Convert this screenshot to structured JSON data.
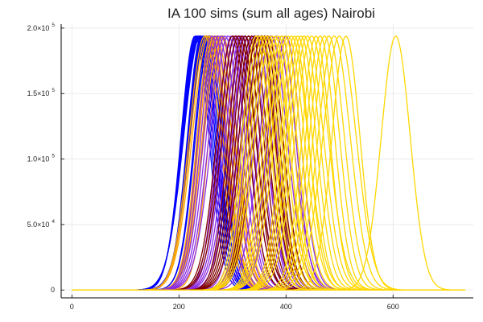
{
  "chart_data": {
    "type": "line",
    "title": "IA 100 sims (sum all ages) Nairobi",
    "xlabel": "",
    "ylabel": "",
    "xlim": [
      -20,
      750
    ],
    "ylim": [
      -6000,
      203000
    ],
    "grid": true,
    "legend": "none",
    "x_ticks": [
      {
        "value": 0,
        "label": "0"
      },
      {
        "value": 200,
        "label": "200"
      },
      {
        "value": 400,
        "label": "400"
      },
      {
        "value": 600,
        "label": "600"
      }
    ],
    "y_ticks": [
      {
        "value": 0,
        "mantissa": "0",
        "exponent": ""
      },
      {
        "value": 50000,
        "mantissa": "5.0×10",
        "exponent": "4"
      },
      {
        "value": 100000,
        "mantissa": "1.0×10",
        "exponent": "5"
      },
      {
        "value": 150000,
        "mantissa": "1.5×10",
        "exponent": "5"
      },
      {
        "value": 200000,
        "mantissa": "2.0×10",
        "exponent": "5"
      }
    ],
    "peak_value": 194000,
    "x_max": 735,
    "series": [
      {
        "color": "#0000ff",
        "peaks": [
          230,
          232,
          234,
          236,
          238,
          240,
          242,
          244,
          246,
          248,
          250,
          252,
          255,
          258
        ]
      },
      {
        "color": "#ffa500",
        "peaks": [
          248,
          252,
          256,
          260,
          263,
          266,
          270,
          274,
          278,
          282
        ]
      },
      {
        "color": "#8b2be2",
        "peaks": [
          262,
          268,
          274,
          280,
          286,
          292,
          298,
          304,
          310,
          316,
          322,
          330,
          338,
          346,
          354,
          362,
          372,
          382,
          392,
          400
        ]
      },
      {
        "color": "#800000",
        "peaks": [
          300,
          306,
          312,
          318,
          324,
          330,
          336,
          342,
          348,
          354,
          360,
          366
        ]
      },
      {
        "color": "#ffd700",
        "peaks": [
          344,
          350,
          356,
          362,
          368,
          374,
          380,
          386,
          392,
          398,
          404,
          410,
          416,
          422,
          428,
          434,
          440,
          448,
          456,
          464,
          472,
          480,
          490,
          500,
          512,
          605
        ]
      }
    ]
  }
}
